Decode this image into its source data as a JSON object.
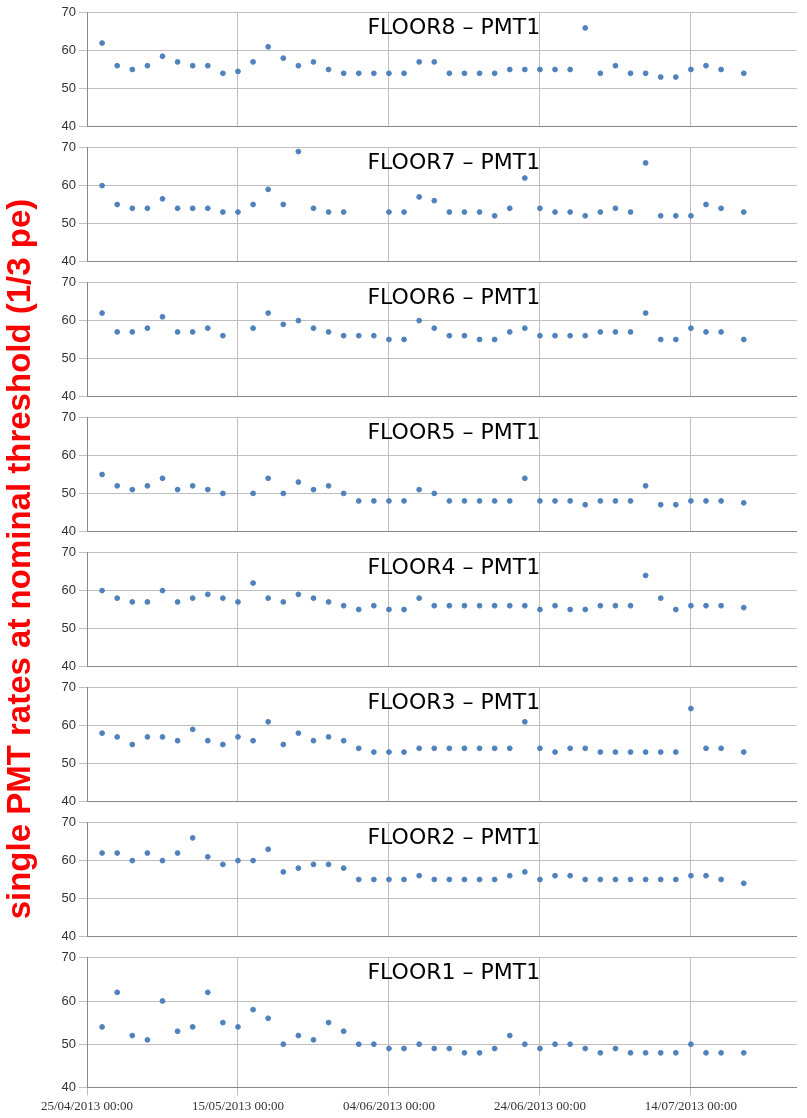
{
  "chart_data": [
    {
      "type": "scatter",
      "title": "FLOOR8 – PMT1",
      "ylabel": "single PMT  rates at nominal threshold (1/3 pe)",
      "xlim": [
        "2013-04-25",
        "2013-07-28"
      ],
      "xticks": [
        {
          "value": "2013-04-25",
          "label": null
        },
        {
          "value": "2013-05-15",
          "label": null
        },
        {
          "value": "2013-06-04",
          "label": null
        },
        {
          "value": "2013-06-24",
          "label": null
        },
        {
          "value": "2013-07-14",
          "label": null
        }
      ],
      "ylim": [
        40,
        70
      ],
      "yticks": [
        40,
        50,
        60,
        70
      ],
      "grid": true,
      "legend": false,
      "marker": "circle",
      "tick_labels": "y",
      "x": [
        "2013-04-27",
        "2013-04-29",
        "2013-05-01",
        "2013-05-03",
        "2013-05-05",
        "2013-05-07",
        "2013-05-09",
        "2013-05-11",
        "2013-05-13",
        "2013-05-15",
        "2013-05-17",
        "2013-05-19",
        "2013-05-21",
        "2013-05-23",
        "2013-05-25",
        "2013-05-27",
        "2013-05-29",
        "2013-05-31",
        "2013-06-02",
        "2013-06-04",
        "2013-06-06",
        "2013-06-08",
        "2013-06-10",
        "2013-06-12",
        "2013-06-14",
        "2013-06-16",
        "2013-06-18",
        "2013-06-20",
        "2013-06-22",
        "2013-06-24",
        "2013-06-26",
        "2013-06-28",
        "2013-06-30",
        "2013-07-02",
        "2013-07-04",
        "2013-07-06",
        "2013-07-08",
        "2013-07-10",
        "2013-07-12",
        "2013-07-14",
        "2013-07-16",
        "2013-07-18",
        "2013-07-21"
      ],
      "series": [
        {
          "color": "#4f81bd",
          "values": [
            62,
            56,
            55,
            56,
            58.5,
            57,
            56,
            56,
            54,
            54.5,
            57,
            61,
            58,
            56,
            57,
            55,
            54,
            54,
            54,
            54,
            54,
            57,
            57,
            54,
            54,
            54,
            54,
            55,
            55,
            55,
            55,
            55,
            66,
            54,
            56,
            54,
            54,
            53,
            53,
            55,
            56,
            55,
            54
          ]
        }
      ]
    },
    {
      "type": "scatter",
      "title": "FLOOR7 – PMT1",
      "xlim": [
        "2013-04-25",
        "2013-07-28"
      ],
      "xticks": [
        {
          "value": "2013-04-25",
          "label": null
        },
        {
          "value": "2013-05-15",
          "label": null
        },
        {
          "value": "2013-06-04",
          "label": null
        },
        {
          "value": "2013-06-24",
          "label": null
        },
        {
          "value": "2013-07-14",
          "label": null
        }
      ],
      "ylim": [
        40,
        70
      ],
      "yticks": [
        40,
        50,
        60,
        70
      ],
      "grid": true,
      "legend": false,
      "marker": "circle",
      "tick_labels": "y",
      "x": [
        "2013-04-27",
        "2013-04-29",
        "2013-05-01",
        "2013-05-03",
        "2013-05-05",
        "2013-05-07",
        "2013-05-09",
        "2013-05-11",
        "2013-05-13",
        "2013-05-15",
        "2013-05-17",
        "2013-05-19",
        "2013-05-21",
        "2013-05-23",
        "2013-05-25",
        "2013-05-27",
        "2013-05-29",
        "2013-05-31",
        "2013-06-02",
        "2013-06-04",
        "2013-06-06",
        "2013-06-08",
        "2013-06-10",
        "2013-06-12",
        "2013-06-14",
        "2013-06-16",
        "2013-06-18",
        "2013-06-20",
        "2013-06-22",
        "2013-06-24",
        "2013-06-26",
        "2013-06-28",
        "2013-06-30",
        "2013-07-02",
        "2013-07-04",
        "2013-07-06",
        "2013-07-08",
        "2013-07-10",
        "2013-07-12",
        "2013-07-14",
        "2013-07-16",
        "2013-07-18",
        "2013-07-21"
      ],
      "series": [
        {
          "color": "#4f81bd",
          "values": [
            60,
            55,
            54,
            54,
            56.5,
            54,
            54,
            54,
            53,
            53,
            55,
            59,
            55,
            69,
            54,
            53,
            53,
            null,
            null,
            53,
            53,
            57,
            56,
            53,
            53,
            53,
            52,
            54,
            62,
            54,
            53,
            53,
            52,
            53,
            54,
            53,
            66,
            52,
            52,
            52,
            55,
            54,
            53
          ]
        }
      ]
    },
    {
      "type": "scatter",
      "title": "FLOOR6 – PMT1",
      "xlim": [
        "2013-04-25",
        "2013-07-28"
      ],
      "xticks": [
        {
          "value": "2013-04-25",
          "label": null
        },
        {
          "value": "2013-05-15",
          "label": null
        },
        {
          "value": "2013-06-04",
          "label": null
        },
        {
          "value": "2013-06-24",
          "label": null
        },
        {
          "value": "2013-07-14",
          "label": null
        }
      ],
      "ylim": [
        40,
        70
      ],
      "yticks": [
        40,
        50,
        60,
        70
      ],
      "grid": true,
      "legend": false,
      "marker": "circle",
      "tick_labels": "y",
      "x": [
        "2013-04-27",
        "2013-04-29",
        "2013-05-01",
        "2013-05-03",
        "2013-05-05",
        "2013-05-07",
        "2013-05-09",
        "2013-05-11",
        "2013-05-13",
        "2013-05-15",
        "2013-05-17",
        "2013-05-19",
        "2013-05-21",
        "2013-05-23",
        "2013-05-25",
        "2013-05-27",
        "2013-05-29",
        "2013-05-31",
        "2013-06-02",
        "2013-06-04",
        "2013-06-06",
        "2013-06-08",
        "2013-06-10",
        "2013-06-12",
        "2013-06-14",
        "2013-06-16",
        "2013-06-18",
        "2013-06-20",
        "2013-06-22",
        "2013-06-24",
        "2013-06-26",
        "2013-06-28",
        "2013-06-30",
        "2013-07-02",
        "2013-07-04",
        "2013-07-06",
        "2013-07-08",
        "2013-07-10",
        "2013-07-12",
        "2013-07-14",
        "2013-07-16",
        "2013-07-18",
        "2013-07-21"
      ],
      "series": [
        {
          "color": "#4f81bd",
          "values": [
            62,
            57,
            57,
            58,
            61,
            57,
            57,
            58,
            56,
            null,
            58,
            62,
            59,
            60,
            58,
            57,
            56,
            56,
            56,
            55,
            55,
            60,
            58,
            56,
            56,
            55,
            55,
            57,
            58,
            56,
            56,
            56,
            56,
            57,
            57,
            57,
            62,
            55,
            55,
            58,
            57,
            57,
            55
          ]
        }
      ]
    },
    {
      "type": "scatter",
      "title": "FLOOR5 – PMT1",
      "xlim": [
        "2013-04-25",
        "2013-07-28"
      ],
      "xticks": [
        {
          "value": "2013-04-25",
          "label": null
        },
        {
          "value": "2013-05-15",
          "label": null
        },
        {
          "value": "2013-06-04",
          "label": null
        },
        {
          "value": "2013-06-24",
          "label": null
        },
        {
          "value": "2013-07-14",
          "label": null
        }
      ],
      "ylim": [
        40,
        70
      ],
      "yticks": [
        40,
        50,
        60,
        70
      ],
      "grid": true,
      "legend": false,
      "marker": "circle",
      "tick_labels": "y",
      "x": [
        "2013-04-27",
        "2013-04-29",
        "2013-05-01",
        "2013-05-03",
        "2013-05-05",
        "2013-05-07",
        "2013-05-09",
        "2013-05-11",
        "2013-05-13",
        "2013-05-15",
        "2013-05-17",
        "2013-05-19",
        "2013-05-21",
        "2013-05-23",
        "2013-05-25",
        "2013-05-27",
        "2013-05-29",
        "2013-05-31",
        "2013-06-02",
        "2013-06-04",
        "2013-06-06",
        "2013-06-08",
        "2013-06-10",
        "2013-06-12",
        "2013-06-14",
        "2013-06-16",
        "2013-06-18",
        "2013-06-20",
        "2013-06-22",
        "2013-06-24",
        "2013-06-26",
        "2013-06-28",
        "2013-06-30",
        "2013-07-02",
        "2013-07-04",
        "2013-07-06",
        "2013-07-08",
        "2013-07-10",
        "2013-07-12",
        "2013-07-14",
        "2013-07-16",
        "2013-07-18",
        "2013-07-21"
      ],
      "series": [
        {
          "color": "#4f81bd",
          "values": [
            55,
            52,
            51,
            52,
            54,
            51,
            52,
            51,
            50,
            null,
            50,
            54,
            50,
            53,
            51,
            52,
            50,
            48,
            48,
            48,
            48,
            51,
            50,
            48,
            48,
            48,
            48,
            48,
            54,
            48,
            48,
            48,
            47,
            48,
            48,
            48,
            52,
            47,
            47,
            48,
            48,
            48,
            47.5
          ]
        }
      ]
    },
    {
      "type": "scatter",
      "title": "FLOOR4 – PMT1",
      "xlim": [
        "2013-04-25",
        "2013-07-28"
      ],
      "xticks": [
        {
          "value": "2013-04-25",
          "label": null
        },
        {
          "value": "2013-05-15",
          "label": null
        },
        {
          "value": "2013-06-04",
          "label": null
        },
        {
          "value": "2013-06-24",
          "label": null
        },
        {
          "value": "2013-07-14",
          "label": null
        }
      ],
      "ylim": [
        40,
        70
      ],
      "yticks": [
        40,
        50,
        60,
        70
      ],
      "grid": true,
      "legend": false,
      "marker": "circle",
      "tick_labels": "y",
      "x": [
        "2013-04-27",
        "2013-04-29",
        "2013-05-01",
        "2013-05-03",
        "2013-05-05",
        "2013-05-07",
        "2013-05-09",
        "2013-05-11",
        "2013-05-13",
        "2013-05-15",
        "2013-05-17",
        "2013-05-19",
        "2013-05-21",
        "2013-05-23",
        "2013-05-25",
        "2013-05-27",
        "2013-05-29",
        "2013-05-31",
        "2013-06-02",
        "2013-06-04",
        "2013-06-06",
        "2013-06-08",
        "2013-06-10",
        "2013-06-12",
        "2013-06-14",
        "2013-06-16",
        "2013-06-18",
        "2013-06-20",
        "2013-06-22",
        "2013-06-24",
        "2013-06-26",
        "2013-06-28",
        "2013-06-30",
        "2013-07-02",
        "2013-07-04",
        "2013-07-06",
        "2013-07-08",
        "2013-07-10",
        "2013-07-12",
        "2013-07-14",
        "2013-07-16",
        "2013-07-18",
        "2013-07-21"
      ],
      "series": [
        {
          "color": "#4f81bd",
          "values": [
            60,
            58,
            57,
            57,
            60,
            57,
            58,
            59,
            58,
            57,
            62,
            58,
            57,
            59,
            58,
            57,
            56,
            55,
            56,
            55,
            55,
            58,
            56,
            56,
            56,
            56,
            56,
            56,
            56,
            55,
            56,
            55,
            55,
            56,
            56,
            56,
            64,
            58,
            55,
            56,
            56,
            56,
            55.5
          ]
        }
      ]
    },
    {
      "type": "scatter",
      "title": "FLOOR3 – PMT1",
      "xlim": [
        "2013-04-25",
        "2013-07-28"
      ],
      "xticks": [
        {
          "value": "2013-04-25",
          "label": null
        },
        {
          "value": "2013-05-15",
          "label": null
        },
        {
          "value": "2013-06-04",
          "label": null
        },
        {
          "value": "2013-06-24",
          "label": null
        },
        {
          "value": "2013-07-14",
          "label": null
        }
      ],
      "ylim": [
        40,
        70
      ],
      "yticks": [
        40,
        50,
        60,
        70
      ],
      "grid": true,
      "legend": false,
      "marker": "circle",
      "tick_labels": "y",
      "x": [
        "2013-04-27",
        "2013-04-29",
        "2013-05-01",
        "2013-05-03",
        "2013-05-05",
        "2013-05-07",
        "2013-05-09",
        "2013-05-11",
        "2013-05-13",
        "2013-05-15",
        "2013-05-17",
        "2013-05-19",
        "2013-05-21",
        "2013-05-23",
        "2013-05-25",
        "2013-05-27",
        "2013-05-29",
        "2013-05-31",
        "2013-06-02",
        "2013-06-04",
        "2013-06-06",
        "2013-06-08",
        "2013-06-10",
        "2013-06-12",
        "2013-06-14",
        "2013-06-16",
        "2013-06-18",
        "2013-06-20",
        "2013-06-22",
        "2013-06-24",
        "2013-06-26",
        "2013-06-28",
        "2013-06-30",
        "2013-07-02",
        "2013-07-04",
        "2013-07-06",
        "2013-07-08",
        "2013-07-10",
        "2013-07-12",
        "2013-07-14",
        "2013-07-16",
        "2013-07-18",
        "2013-07-21"
      ],
      "series": [
        {
          "color": "#4f81bd",
          "values": [
            58,
            57,
            55,
            57,
            57,
            56,
            59,
            56,
            55,
            57,
            56,
            61,
            55,
            58,
            56,
            57,
            56,
            54,
            53,
            53,
            53,
            54,
            54,
            54,
            54,
            54,
            54,
            54,
            61,
            54,
            53,
            54,
            54,
            53,
            53,
            53,
            53,
            53,
            53,
            64.5,
            54,
            54,
            53
          ]
        }
      ]
    },
    {
      "type": "scatter",
      "title": "FLOOR2 – PMT1",
      "xlim": [
        "2013-04-25",
        "2013-07-28"
      ],
      "xticks": [
        {
          "value": "2013-04-25",
          "label": null
        },
        {
          "value": "2013-05-15",
          "label": null
        },
        {
          "value": "2013-06-04",
          "label": null
        },
        {
          "value": "2013-06-24",
          "label": null
        },
        {
          "value": "2013-07-14",
          "label": null
        }
      ],
      "ylim": [
        40,
        70
      ],
      "yticks": [
        40,
        50,
        60,
        70
      ],
      "grid": true,
      "legend": false,
      "marker": "circle",
      "tick_labels": "y",
      "x": [
        "2013-04-27",
        "2013-04-29",
        "2013-05-01",
        "2013-05-03",
        "2013-05-05",
        "2013-05-07",
        "2013-05-09",
        "2013-05-11",
        "2013-05-13",
        "2013-05-15",
        "2013-05-17",
        "2013-05-19",
        "2013-05-21",
        "2013-05-23",
        "2013-05-25",
        "2013-05-27",
        "2013-05-29",
        "2013-05-31",
        "2013-06-02",
        "2013-06-04",
        "2013-06-06",
        "2013-06-08",
        "2013-06-10",
        "2013-06-12",
        "2013-06-14",
        "2013-06-16",
        "2013-06-18",
        "2013-06-20",
        "2013-06-22",
        "2013-06-24",
        "2013-06-26",
        "2013-06-28",
        "2013-06-30",
        "2013-07-02",
        "2013-07-04",
        "2013-07-06",
        "2013-07-08",
        "2013-07-10",
        "2013-07-12",
        "2013-07-14",
        "2013-07-16",
        "2013-07-18",
        "2013-07-21"
      ],
      "series": [
        {
          "color": "#4f81bd",
          "values": [
            62,
            62,
            60,
            62,
            60,
            62,
            66,
            61,
            59,
            60,
            60,
            63,
            57,
            58,
            59,
            59,
            58,
            55,
            55,
            55,
            55,
            56,
            55,
            55,
            55,
            55,
            55,
            56,
            57,
            55,
            56,
            56,
            55,
            55,
            55,
            55,
            55,
            55,
            55,
            56,
            56,
            55,
            54
          ]
        }
      ]
    },
    {
      "type": "scatter",
      "title": "FLOOR1 – PMT1",
      "xlim": [
        "2013-04-25",
        "2013-07-28"
      ],
      "xticks": [
        {
          "value": "2013-04-25",
          "label": "25/04/2013 00:00"
        },
        {
          "value": "2013-05-15",
          "label": "15/05/2013 00:00"
        },
        {
          "value": "2013-06-04",
          "label": "04/06/2013 00:00"
        },
        {
          "value": "2013-06-24",
          "label": "24/06/2013 00:00"
        },
        {
          "value": "2013-07-14",
          "label": "14/07/2013 00:00"
        }
      ],
      "ylim": [
        40,
        70
      ],
      "yticks": [
        40,
        50,
        60,
        70
      ],
      "grid": true,
      "legend": false,
      "marker": "circle",
      "x": [
        "2013-04-27",
        "2013-04-29",
        "2013-05-01",
        "2013-05-03",
        "2013-05-05",
        "2013-05-07",
        "2013-05-09",
        "2013-05-11",
        "2013-05-13",
        "2013-05-15",
        "2013-05-17",
        "2013-05-19",
        "2013-05-21",
        "2013-05-23",
        "2013-05-25",
        "2013-05-27",
        "2013-05-29",
        "2013-05-31",
        "2013-06-02",
        "2013-06-04",
        "2013-06-06",
        "2013-06-08",
        "2013-06-10",
        "2013-06-12",
        "2013-06-14",
        "2013-06-16",
        "2013-06-18",
        "2013-06-20",
        "2013-06-22",
        "2013-06-24",
        "2013-06-26",
        "2013-06-28",
        "2013-06-30",
        "2013-07-02",
        "2013-07-04",
        "2013-07-06",
        "2013-07-08",
        "2013-07-10",
        "2013-07-12",
        "2013-07-14",
        "2013-07-16",
        "2013-07-18",
        "2013-07-21"
      ],
      "series": [
        {
          "color": "#4f81bd",
          "values": [
            54,
            62,
            52,
            51,
            60,
            53,
            54,
            62,
            55,
            54,
            58,
            56,
            50,
            52,
            51,
            55,
            53,
            50,
            50,
            49,
            49,
            50,
            49,
            49,
            48,
            48,
            49,
            52,
            50,
            49,
            50,
            50,
            49,
            48,
            49,
            48,
            48,
            48,
            48,
            50,
            48,
            48,
            48
          ]
        }
      ]
    }
  ]
}
